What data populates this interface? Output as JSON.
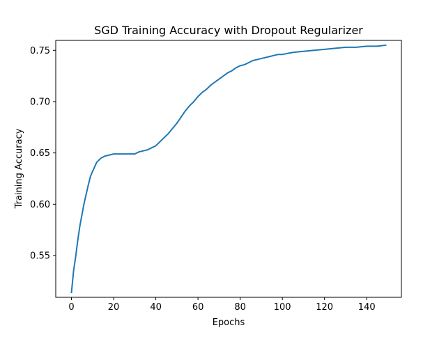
{
  "chart_data": {
    "type": "line",
    "title": "SGD Training Accuracy with Dropout Regularizer",
    "xlabel": "Epochs",
    "ylabel": "Training Accuracy",
    "xlim": [
      -7.45,
      156.45
    ],
    "ylim": [
      0.5093,
      0.7597
    ],
    "xticks": [
      0,
      20,
      40,
      60,
      80,
      100,
      120,
      140
    ],
    "xtick_labels": [
      "0",
      "20",
      "40",
      "60",
      "80",
      "100",
      "120",
      "140"
    ],
    "yticks": [
      0.55,
      0.6,
      0.65,
      0.7,
      0.75
    ],
    "ytick_labels": [
      "0.55",
      "0.60",
      "0.65",
      "0.70",
      "0.75"
    ],
    "grid": false,
    "legend": null,
    "series": [
      {
        "color": "#1f77b4",
        "x": [
          0,
          1,
          2,
          3,
          4,
          5,
          6,
          7,
          8,
          9,
          10,
          12,
          14,
          16,
          18,
          20,
          22,
          24,
          26,
          28,
          30,
          32,
          34,
          36,
          38,
          40,
          42,
          44,
          46,
          48,
          50,
          52,
          54,
          56,
          58,
          60,
          62,
          64,
          66,
          68,
          70,
          72,
          74,
          76,
          78,
          80,
          82,
          84,
          86,
          88,
          90,
          92,
          94,
          96,
          98,
          100,
          105,
          110,
          115,
          120,
          125,
          130,
          135,
          140,
          145,
          149
        ],
        "y": [
          0.514,
          0.535,
          0.549,
          0.565,
          0.579,
          0.59,
          0.601,
          0.61,
          0.619,
          0.627,
          0.632,
          0.641,
          0.645,
          0.647,
          0.648,
          0.649,
          0.649,
          0.649,
          0.649,
          0.649,
          0.649,
          0.651,
          0.652,
          0.653,
          0.655,
          0.657,
          0.661,
          0.665,
          0.669,
          0.674,
          0.679,
          0.685,
          0.691,
          0.696,
          0.7,
          0.705,
          0.709,
          0.712,
          0.716,
          0.719,
          0.722,
          0.725,
          0.728,
          0.73,
          0.733,
          0.735,
          0.736,
          0.738,
          0.74,
          0.741,
          0.742,
          0.743,
          0.744,
          0.745,
          0.746,
          0.746,
          0.748,
          0.749,
          0.75,
          0.751,
          0.752,
          0.753,
          0.753,
          0.754,
          0.754,
          0.755
        ]
      }
    ]
  }
}
